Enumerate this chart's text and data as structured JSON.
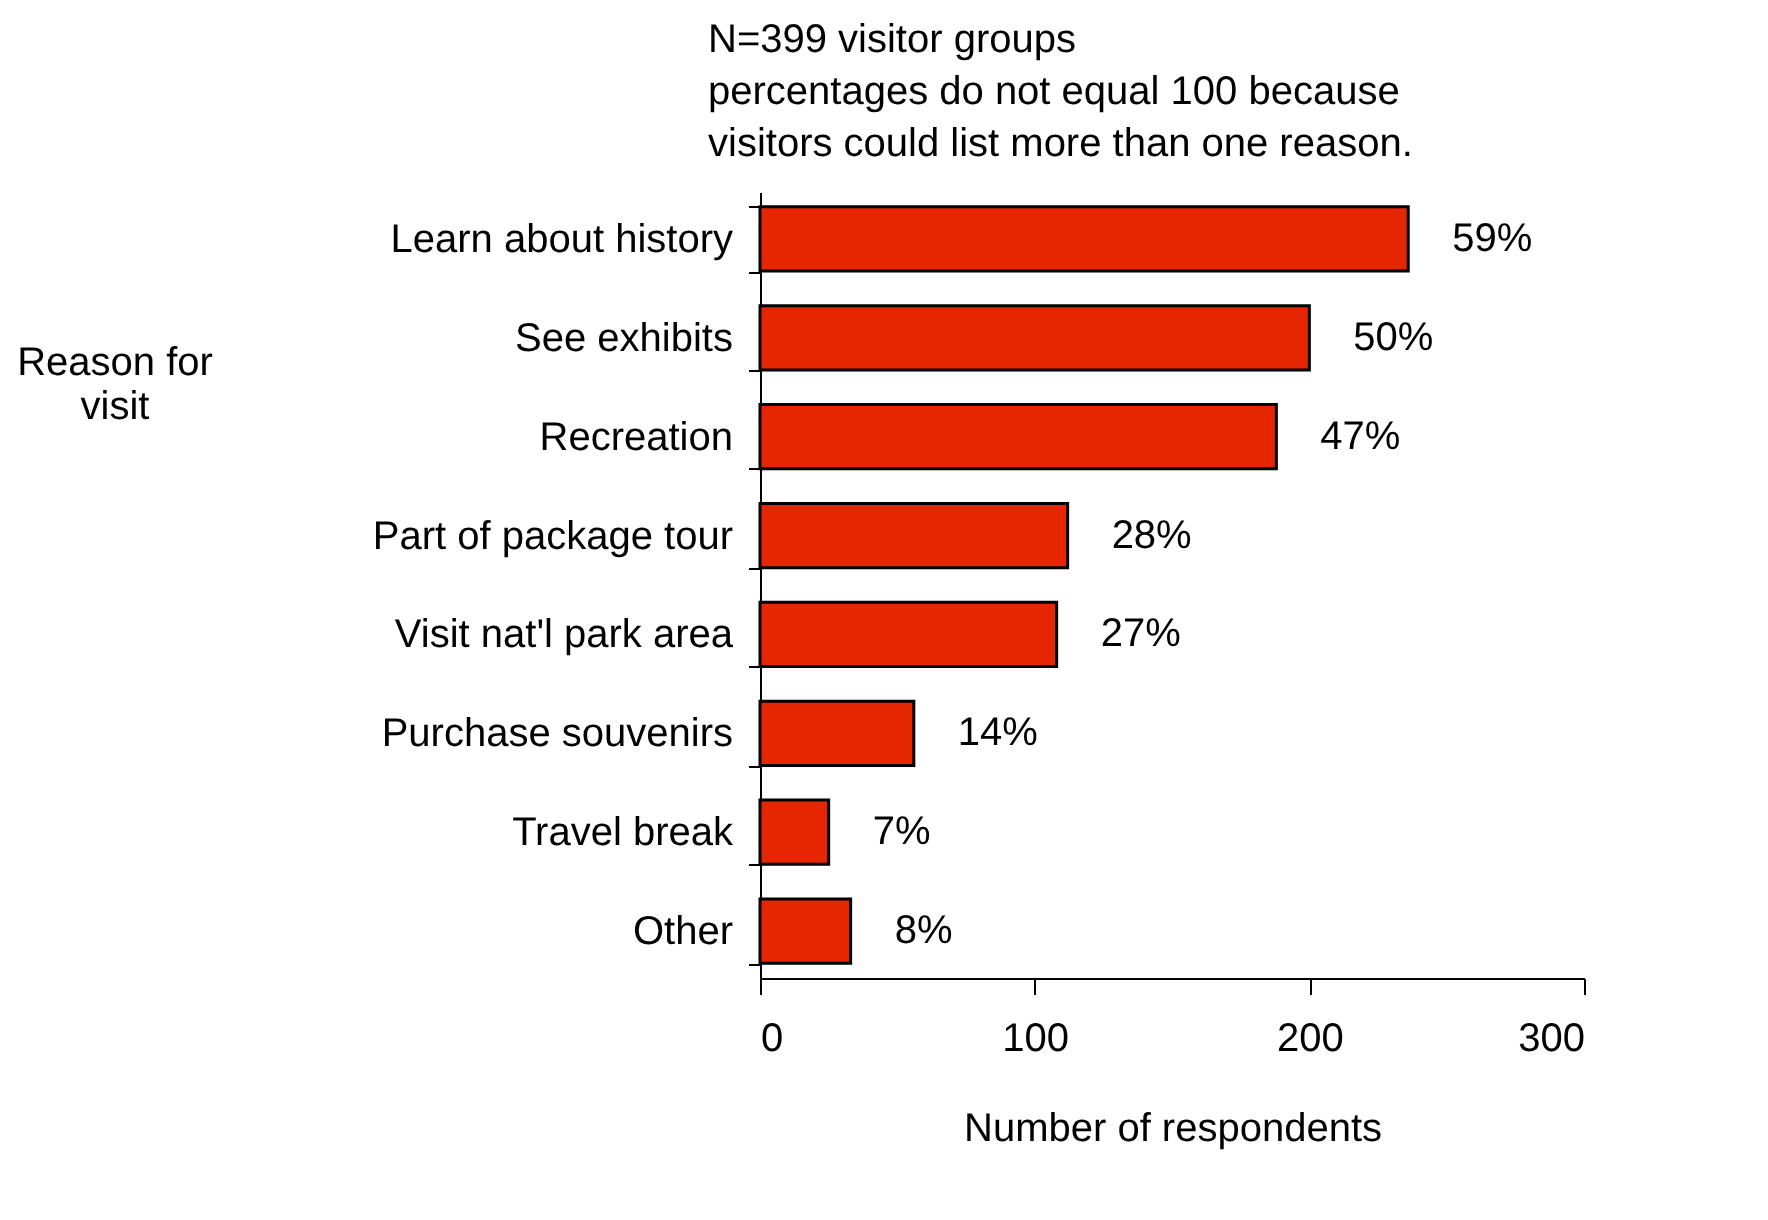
{
  "chart_data": {
    "type": "bar",
    "orientation": "horizontal",
    "annotations": [
      "N=399 visitor groups",
      "percentages do not equal 100 because",
      "visitors could list more than one reason.",
      {
        "text": "59%",
        "x": 236,
        "y": "Learn about history"
      },
      {
        "text": "50%",
        "x": 200,
        "y": "See exhibits"
      },
      {
        "text": "47%",
        "x": 188,
        "y": "Recreation"
      },
      {
        "text": "28%",
        "x": 112,
        "y": "Part of package tour"
      },
      {
        "text": "27%",
        "x": 108,
        "y": "Visit nat'l park area"
      },
      {
        "text": "14%",
        "x": 56,
        "y": "Purchase souvenirs"
      },
      {
        "text": "7%",
        "x": 25,
        "y": "Travel break"
      },
      {
        "text": "8%",
        "x": 33,
        "y": "Other"
      }
    ],
    "ylabel": "Reason for visit",
    "xlabel": "Number of respondents",
    "categories": [
      "Learn about history",
      "See exhibits",
      "Recreation",
      "Part of package tour",
      "Visit nat'l park area",
      "Purchase souvenirs",
      "Travel break",
      "Other"
    ],
    "values": [
      236,
      200,
      188,
      112,
      108,
      56,
      25,
      33
    ],
    "color": "#e62600",
    "xlim": [
      0,
      300
    ],
    "xticks": [
      0,
      100,
      200,
      300
    ],
    "grid": false
  }
}
